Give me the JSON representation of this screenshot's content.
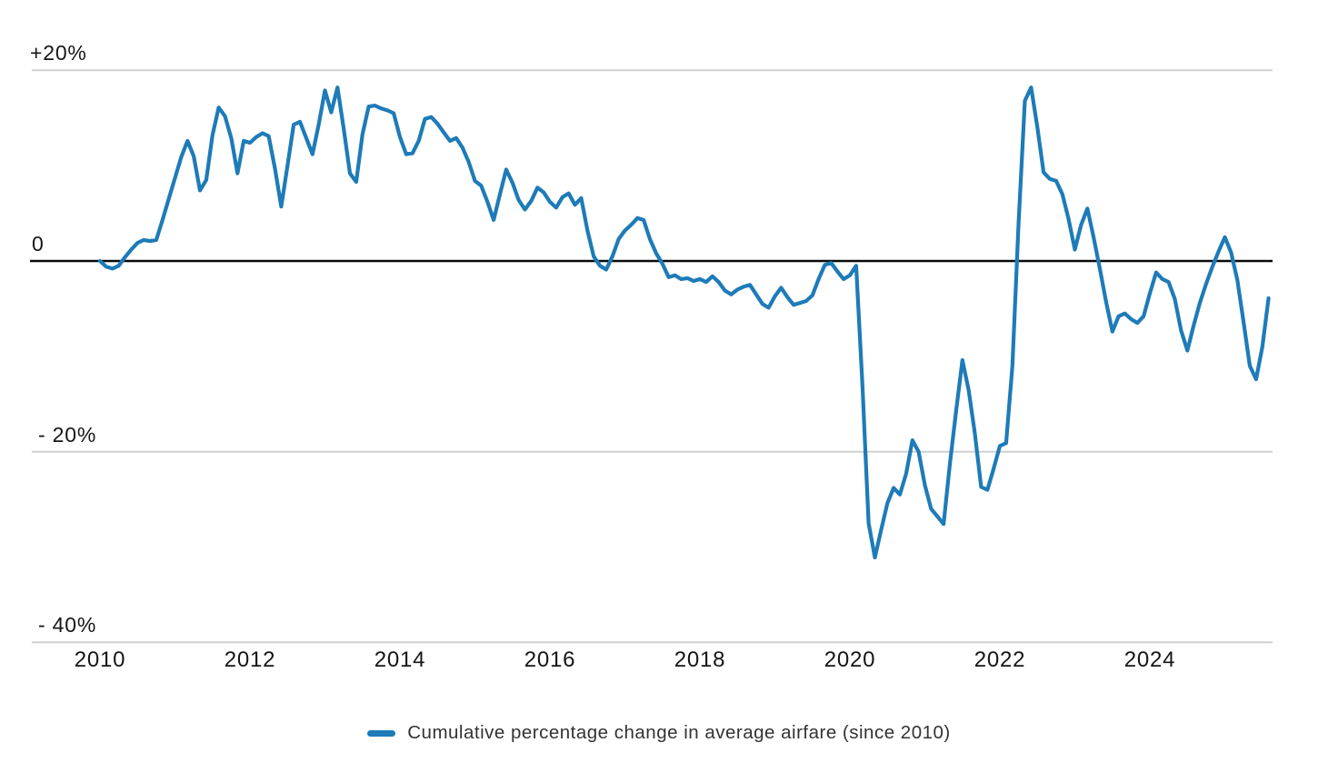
{
  "chart_data": {
    "type": "line",
    "title": "",
    "frequency": "monthly",
    "x_range": {
      "start": "2010-01",
      "end": "2025-08"
    },
    "x_axis": {
      "ticks": [
        "2010",
        "2012",
        "2014",
        "2016",
        "2018",
        "2020",
        "2022",
        "2024"
      ]
    },
    "y_axis": {
      "unit": "percent",
      "ticks": [
        {
          "label": "+20%",
          "value": 20
        },
        {
          "label": "0",
          "value": 0
        },
        {
          "label": "- 20%",
          "value": -20
        },
        {
          "label": "- 40%",
          "value": -40
        }
      ]
    },
    "ylim": [
      -42,
      22
    ],
    "grid": "horizontal-only",
    "legend_position": "bottom-center",
    "legend_label": "Cumulative percentage change in average airfare (since 2010)",
    "colors": {
      "line": "#1e7bb8",
      "grid": "#d0d0d0",
      "zero_line": "#0a0a0a",
      "tick_text": "#161616",
      "legend_text": "#333333",
      "background": "#ffffff"
    },
    "series": [
      {
        "name": "Cumulative percentage change in average airfare (since 2010)",
        "start": "2010-01",
        "values": [
          0.0,
          -0.6,
          -0.8,
          -0.5,
          0.4,
          1.2,
          1.9,
          2.2,
          2.1,
          2.2,
          4.3,
          6.5,
          8.7,
          10.9,
          12.6,
          11.0,
          7.4,
          8.5,
          13.2,
          16.1,
          15.2,
          12.9,
          9.2,
          12.6,
          12.4,
          13.0,
          13.4,
          13.1,
          9.7,
          5.7,
          10.0,
          14.3,
          14.6,
          12.9,
          11.2,
          14.3,
          17.9,
          15.6,
          18.2,
          13.9,
          9.2,
          8.3,
          13.3,
          16.2,
          16.3,
          16.0,
          15.8,
          15.5,
          13.0,
          11.2,
          11.3,
          12.6,
          14.9,
          15.1,
          14.4,
          13.5,
          12.6,
          12.9,
          11.9,
          10.4,
          8.4,
          7.9,
          6.2,
          4.3,
          7.0,
          9.6,
          8.2,
          6.4,
          5.4,
          6.3,
          7.7,
          7.2,
          6.2,
          5.6,
          6.7,
          7.1,
          5.9,
          6.6,
          3.2,
          0.5,
          -0.5,
          -0.9,
          0.5,
          2.3,
          3.2,
          3.8,
          4.5,
          4.3,
          2.3,
          0.8,
          -0.3,
          -1.7,
          -1.5,
          -1.9,
          -1.8,
          -2.1,
          -1.9,
          -2.2,
          -1.6,
          -2.2,
          -3.1,
          -3.5,
          -3.0,
          -2.7,
          -2.5,
          -3.5,
          -4.5,
          -4.9,
          -3.7,
          -2.8,
          -3.8,
          -4.6,
          -4.4,
          -4.2,
          -3.6,
          -1.9,
          -0.4,
          -0.2,
          -1.1,
          -1.9,
          -1.5,
          -0.5,
          -13.0,
          -27.5,
          -31.1,
          -28.2,
          -25.4,
          -23.8,
          -24.5,
          -22.3,
          -18.8,
          -20.0,
          -23.5,
          -26.0,
          -26.8,
          -27.6,
          -21.3,
          -15.7,
          -10.4,
          -13.5,
          -18.1,
          -23.7,
          -24.0,
          -21.8,
          -19.4,
          -19.1,
          -11.0,
          4.0,
          16.8,
          18.2,
          14.0,
          9.3,
          8.6,
          8.4,
          7.0,
          4.4,
          1.2,
          3.8,
          5.5,
          2.5,
          -0.8,
          -4.3,
          -7.4,
          -5.8,
          -5.5,
          -6.1,
          -6.5,
          -5.8,
          -3.4,
          -1.2,
          -1.9,
          -2.2,
          -4.0,
          -7.3,
          -9.4,
          -6.8,
          -4.4,
          -2.4,
          -0.6,
          1.0,
          2.5,
          0.9,
          -2.0,
          -6.4,
          -11.0,
          -12.4,
          -9.0,
          -3.9
        ]
      }
    ]
  }
}
